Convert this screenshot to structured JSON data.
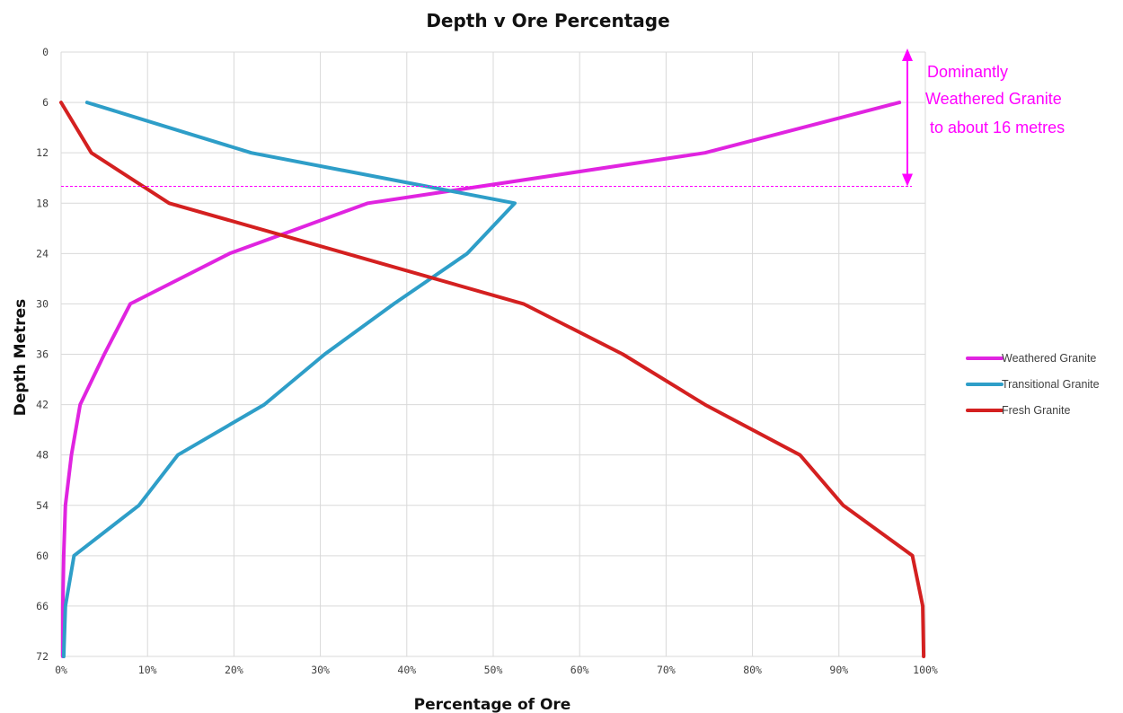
{
  "chart_data": {
    "type": "line",
    "title": "Depth  v Ore Percentage",
    "xlabel": "Percentage of Ore",
    "ylabel": "Depth Metres",
    "x_ticks": [
      "0%",
      "10%",
      "20%",
      "30%",
      "40%",
      "50%",
      "60%",
      "70%",
      "80%",
      "90%",
      "100%"
    ],
    "y_ticks": [
      "0",
      "6",
      "12",
      "18",
      "24",
      "30",
      "36",
      "42",
      "48",
      "54",
      "60",
      "66",
      "72"
    ],
    "xlim": [
      0,
      100
    ],
    "ylim": [
      0,
      72
    ],
    "y_inverted": true,
    "grid": true,
    "legend_position": "right",
    "series": [
      {
        "name": "Weathered Granite",
        "color": "#e024e0",
        "points": [
          [
            97,
            6
          ],
          [
            74.5,
            12
          ],
          [
            35.5,
            18
          ],
          [
            19.5,
            24
          ],
          [
            8,
            30
          ],
          [
            5,
            36
          ],
          [
            2.2,
            42
          ],
          [
            1.2,
            48
          ],
          [
            0.5,
            54
          ],
          [
            0.3,
            60
          ],
          [
            0.2,
            66
          ],
          [
            0.2,
            72
          ]
        ]
      },
      {
        "name": "Transitional Granite",
        "color": "#2e9ec8",
        "points": [
          [
            3,
            6
          ],
          [
            22,
            12
          ],
          [
            52.5,
            18
          ],
          [
            47,
            24
          ],
          [
            38.5,
            30
          ],
          [
            30.5,
            36
          ],
          [
            23.5,
            42
          ],
          [
            13.5,
            48
          ],
          [
            9,
            54
          ],
          [
            1.5,
            60
          ],
          [
            0.5,
            66
          ],
          [
            0.3,
            72
          ]
        ]
      },
      {
        "name": "Fresh Granite",
        "color": "#d42020",
        "points": [
          [
            0,
            6
          ],
          [
            3.5,
            12
          ],
          [
            12.5,
            18
          ],
          [
            33,
            24
          ],
          [
            53.5,
            30
          ],
          [
            65,
            36
          ],
          [
            74.5,
            42
          ],
          [
            85.5,
            48
          ],
          [
            90.5,
            54
          ],
          [
            98.5,
            60
          ],
          [
            99.7,
            66
          ],
          [
            99.8,
            72
          ]
        ]
      }
    ],
    "annotations": {
      "text_lines": [
        "Dominantly",
        "Weathered Granite",
        "to about 16 metres"
      ],
      "color": "#ff00ff",
      "arrow_from_depth": 0,
      "arrow_to_depth": 16,
      "reference_line_depth": 16
    }
  }
}
